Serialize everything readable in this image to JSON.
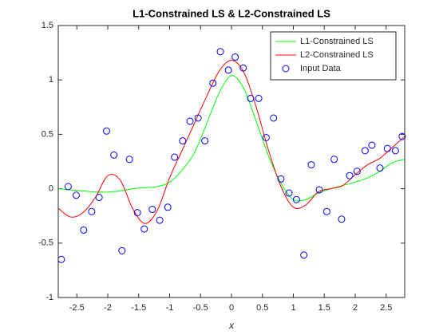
{
  "chart_data": {
    "type": "line",
    "title": "L1-Constrained LS & L2-Constrained LS",
    "xlabel": "x",
    "xlim": [
      -2.8,
      2.8
    ],
    "ylim": [
      -1,
      1.5
    ],
    "xticks": [
      -2.5,
      -2,
      -1.5,
      -1,
      -0.5,
      0,
      0.5,
      1,
      1.5,
      2,
      2.5
    ],
    "yticks": [
      -1,
      -0.5,
      0,
      0.5,
      1,
      1.5
    ],
    "legend": "upper right",
    "series": [
      {
        "name": "L1-Constrained LS",
        "color": "#00ff00",
        "style": "line",
        "x": [
          -2.8,
          -2.6,
          -2.4,
          -2.2,
          -2.0,
          -1.8,
          -1.6,
          -1.4,
          -1.2,
          -1.0,
          -0.8,
          -0.6,
          -0.4,
          -0.2,
          0,
          0.2,
          0.4,
          0.6,
          0.8,
          1.0,
          1.2,
          1.4,
          1.6,
          1.8,
          2.0,
          2.2,
          2.4,
          2.6,
          2.8
        ],
        "values": [
          0,
          -0.01,
          -0.02,
          -0.03,
          -0.03,
          -0.02,
          0,
          0.01,
          0.02,
          0.06,
          0.17,
          0.33,
          0.6,
          0.88,
          1.04,
          0.92,
          0.62,
          0.3,
          0.05,
          -0.1,
          -0.1,
          -0.04,
          0,
          0.03,
          0.06,
          0.1,
          0.16,
          0.24,
          0.27
        ]
      },
      {
        "name": "L2-Constrained LS",
        "color": "#ff0000",
        "style": "line",
        "x": [
          -2.8,
          -2.6,
          -2.4,
          -2.2,
          -2.0,
          -1.8,
          -1.6,
          -1.4,
          -1.2,
          -1.0,
          -0.8,
          -0.6,
          -0.4,
          -0.2,
          0,
          0.2,
          0.4,
          0.6,
          0.8,
          1.0,
          1.2,
          1.4,
          1.6,
          1.8,
          2.0,
          2.2,
          2.4,
          2.6,
          2.8
        ],
        "values": [
          -0.18,
          -0.26,
          -0.22,
          -0.08,
          0.12,
          0.08,
          -0.18,
          -0.32,
          -0.2,
          0.1,
          0.35,
          0.6,
          0.85,
          1.08,
          1.18,
          1.07,
          0.75,
          0.35,
          0.02,
          -0.17,
          -0.15,
          -0.03,
          0,
          0.03,
          0.13,
          0.22,
          0.28,
          0.38,
          0.48
        ]
      },
      {
        "name": "Input Data",
        "color": "#0000ff",
        "style": "markers",
        "x": [
          -2.75,
          -2.64,
          -2.51,
          -2.39,
          -2.26,
          -2.14,
          -2.02,
          -1.9,
          -1.77,
          -1.65,
          -1.52,
          -1.41,
          -1.28,
          -1.16,
          -1.03,
          -0.92,
          -0.79,
          -0.67,
          -0.54,
          -0.43,
          -0.3,
          -0.18,
          -0.05,
          0.06,
          0.19,
          0.31,
          0.44,
          0.56,
          0.68,
          0.8,
          0.93,
          1.05,
          1.17,
          1.29,
          1.42,
          1.54,
          1.66,
          1.78,
          1.91,
          2.03,
          2.16,
          2.27,
          2.4,
          2.52,
          2.65,
          2.76
        ],
        "values": [
          -0.65,
          0.02,
          -0.06,
          -0.38,
          -0.21,
          -0.08,
          0.53,
          0.31,
          -0.57,
          0.27,
          -0.22,
          -0.37,
          -0.19,
          -0.29,
          -0.17,
          0.29,
          0.44,
          0.62,
          0.65,
          0.44,
          0.97,
          1.26,
          1.09,
          1.21,
          1.11,
          0.83,
          0.83,
          0.47,
          0.65,
          0.09,
          -0.04,
          -0.1,
          -0.61,
          0.22,
          -0.01,
          -0.21,
          0.27,
          -0.28,
          0.12,
          0.16,
          0.35,
          0.4,
          0.19,
          0.37,
          0.35,
          0.48
        ]
      }
    ]
  }
}
